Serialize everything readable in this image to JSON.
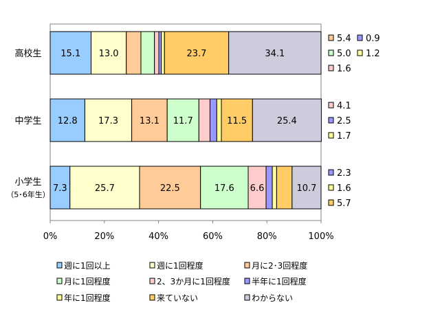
{
  "chart_data": {
    "type": "bar",
    "orientation": "horizontal",
    "stacked": "percent",
    "categories": [
      "高校生",
      "中学生",
      "小学生\n（5･6年生）"
    ],
    "x_ticks": [
      "0%",
      "20%",
      "40%",
      "60%",
      "80%",
      "100%"
    ],
    "xlim": [
      0,
      100
    ],
    "grid": false,
    "legend_position": "bottom",
    "series": [
      {
        "name": "週に1回以上",
        "color": "#99ccff",
        "values": [
          15.1,
          12.8,
          7.3
        ],
        "labels": [
          "15.1",
          "12.8",
          "7.3"
        ]
      },
      {
        "name": "週に1回程度",
        "color": "#ffffcc",
        "values": [
          13.0,
          17.3,
          25.7
        ],
        "labels": [
          "13.0",
          "17.3",
          "25.7"
        ]
      },
      {
        "name": "月に2･3回程度",
        "color": "#ffcc99",
        "values": [
          5.4,
          13.1,
          22.5
        ],
        "labels": [
          "",
          "13.1",
          "22.5"
        ]
      },
      {
        "name": "月に1回程度",
        "color": "#ccffcc",
        "values": [
          5.0,
          11.7,
          17.6
        ],
        "labels": [
          "",
          "11.7",
          "17.6"
        ]
      },
      {
        "name": "2、3か月に1回程度",
        "color": "#ffcccc",
        "values": [
          1.6,
          4.1,
          6.6
        ],
        "labels": [
          "",
          "",
          "6.6"
        ]
      },
      {
        "name": "半年に1回程度",
        "color": "#9999ff",
        "values": [
          0.9,
          2.5,
          2.3
        ],
        "labels": [
          "",
          "",
          ""
        ]
      },
      {
        "name": "年に1回程度",
        "color": "#ffff99",
        "values": [
          1.2,
          1.7,
          1.6
        ],
        "labels": [
          "",
          "",
          ""
        ]
      },
      {
        "name": "来ていない",
        "color": "#ffcc66",
        "values": [
          23.7,
          11.5,
          5.7
        ],
        "labels": [
          "23.7",
          "11.5",
          ""
        ]
      },
      {
        "name": "わからない",
        "color": "#ccccdd",
        "values": [
          34.1,
          25.4,
          10.7
        ],
        "labels": [
          "34.1",
          "25.4",
          "10.7"
        ]
      }
    ],
    "side_annotations": [
      {
        "category_index": 0,
        "rows": [
          [
            {
              "series_index": 2,
              "text": "5.4"
            },
            {
              "series_index": 5,
              "text": "0.9"
            }
          ],
          [
            {
              "series_index": 3,
              "text": "5.0"
            },
            {
              "series_index": 6,
              "text": "1.2"
            }
          ],
          [
            {
              "series_index": 4,
              "text": "1.6"
            }
          ]
        ]
      },
      {
        "category_index": 1,
        "rows": [
          [
            {
              "series_index": 4,
              "text": "4.1"
            }
          ],
          [
            {
              "series_index": 5,
              "text": "2.5"
            }
          ],
          [
            {
              "series_index": 6,
              "text": "1.7"
            }
          ]
        ]
      },
      {
        "category_index": 2,
        "rows": [
          [
            {
              "series_index": 5,
              "text": "2.3"
            }
          ],
          [
            {
              "series_index": 6,
              "text": "1.6"
            }
          ],
          [
            {
              "series_index": 7,
              "text": "5.7"
            }
          ]
        ]
      }
    ]
  }
}
